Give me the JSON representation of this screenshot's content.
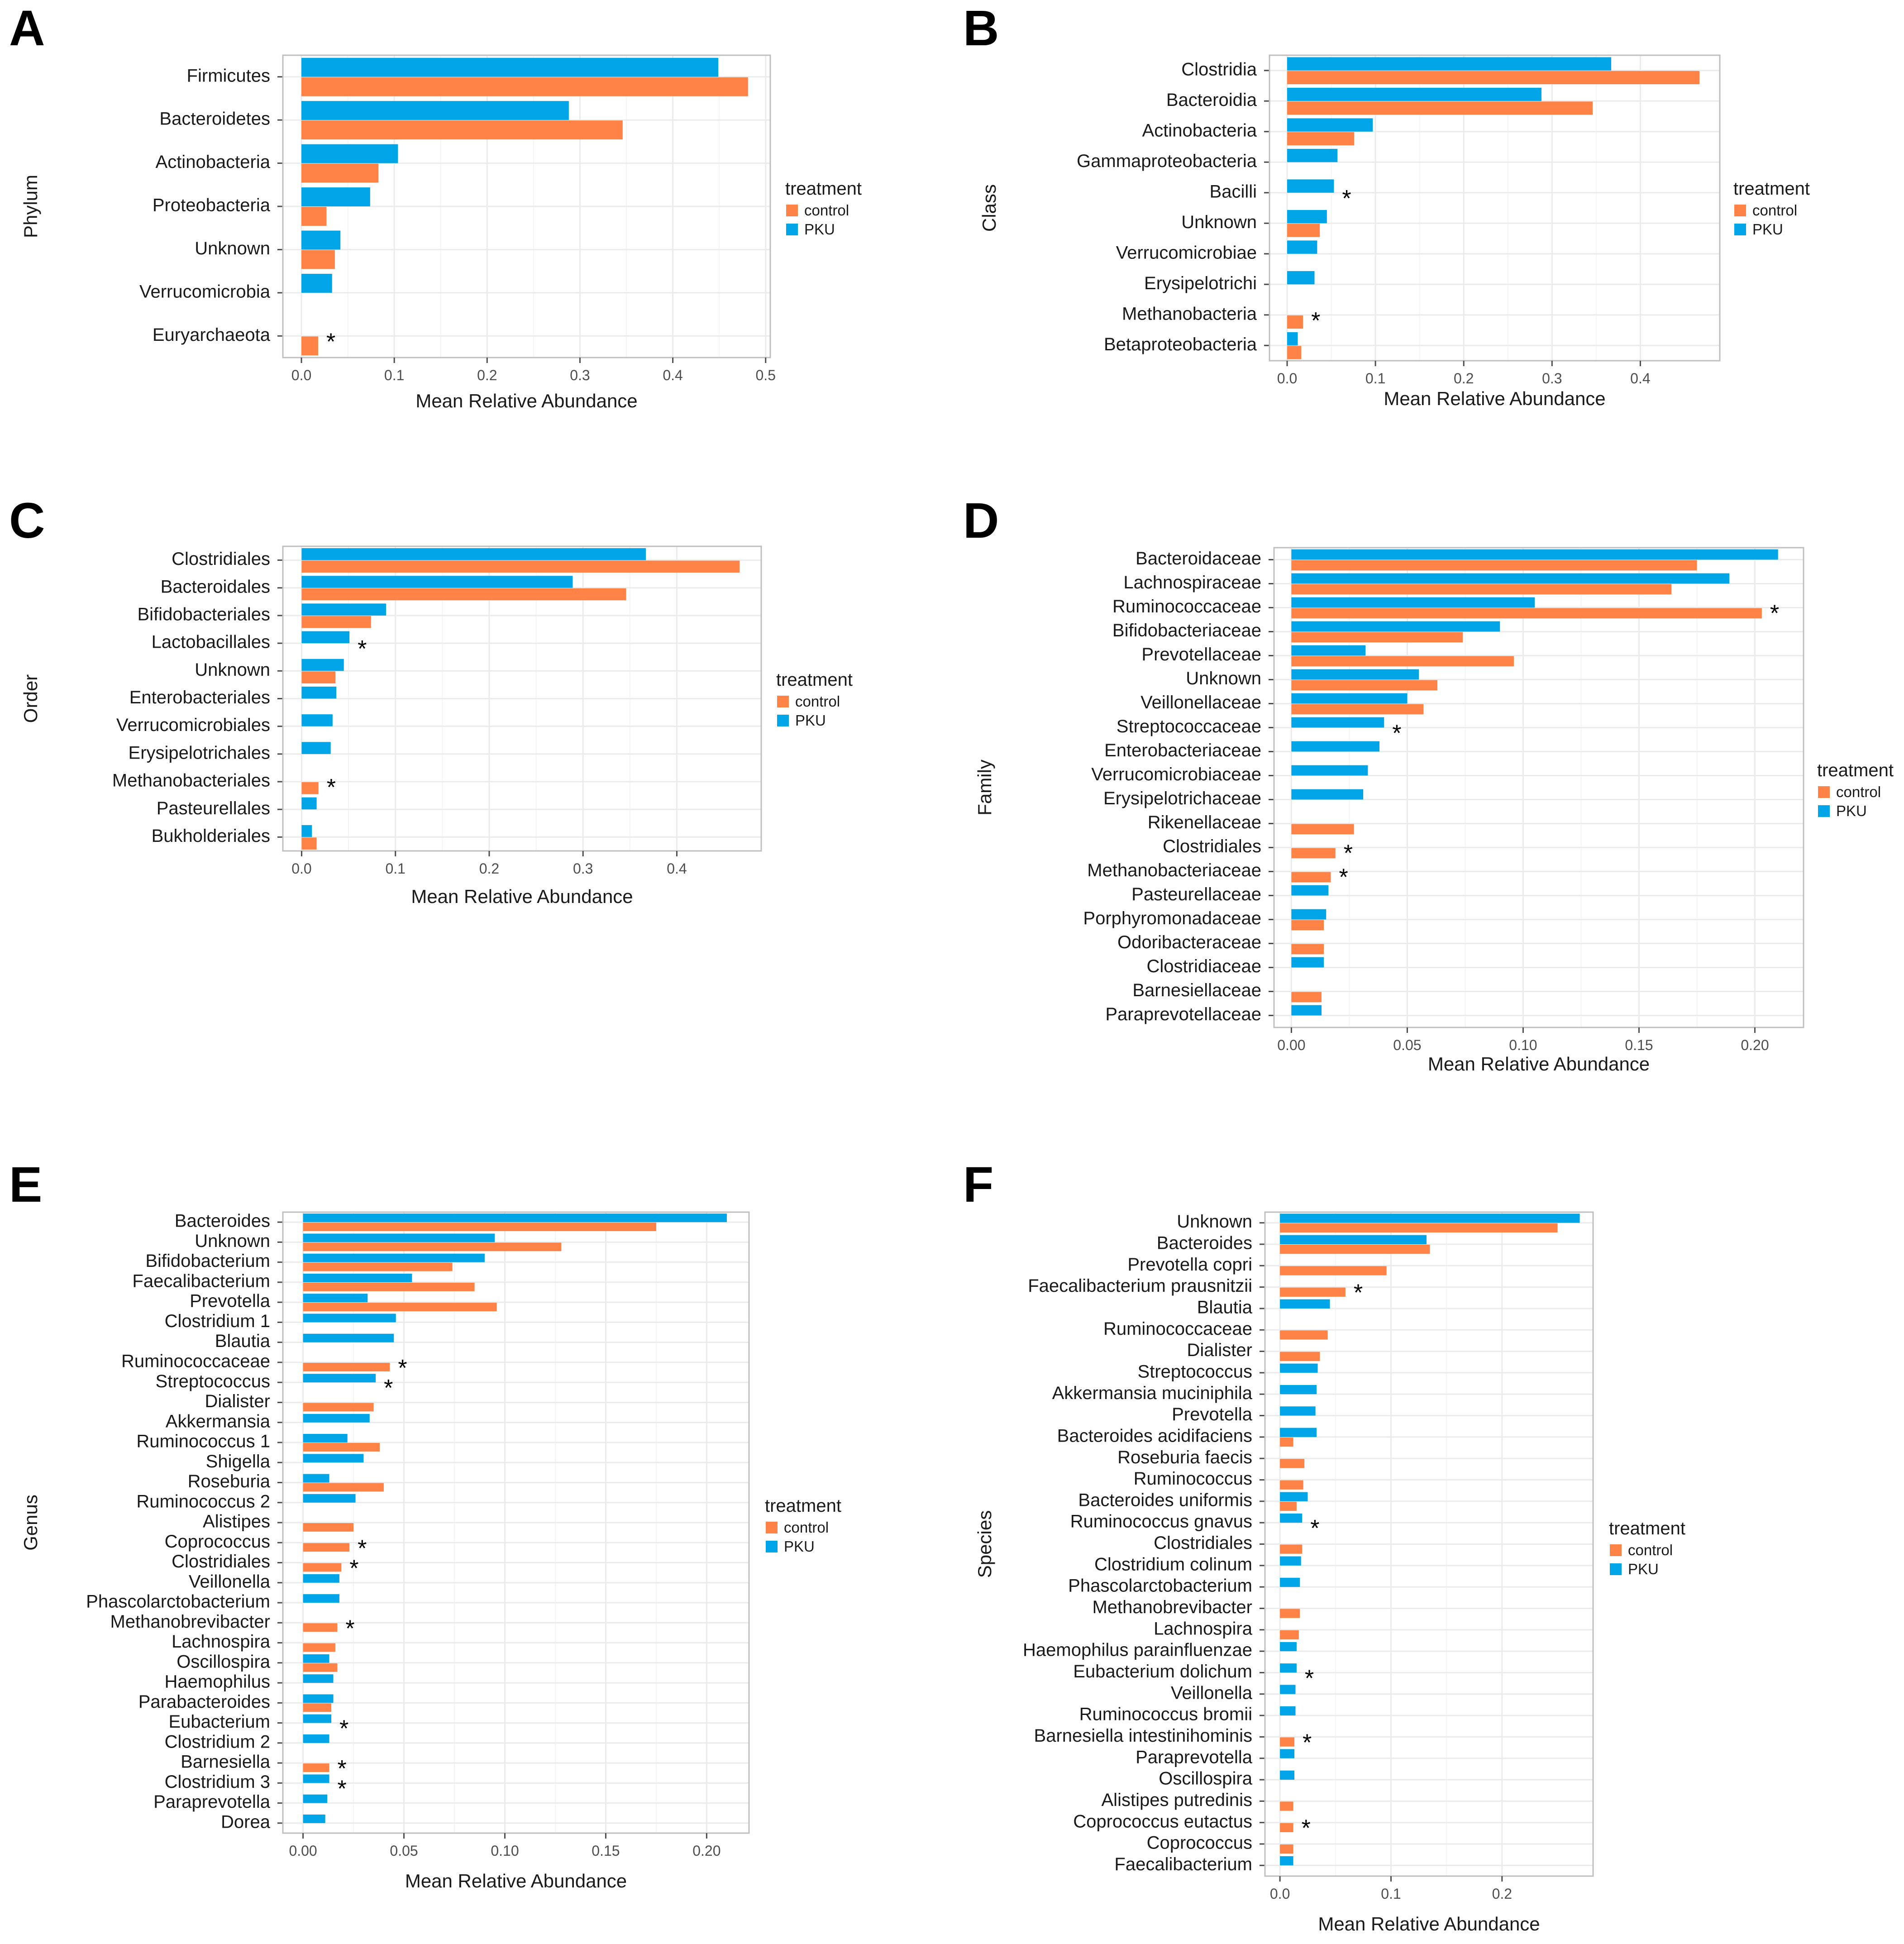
{
  "colors": {
    "control": "#FF8247",
    "PKU": "#00A5E8"
  },
  "chart_data": [
    {
      "letter": "A",
      "type": "bar",
      "orientation": "horizontal",
      "xlabel": "Mean Relative Abundance",
      "ylabel": "Phylum",
      "xlim": [
        -0.02,
        0.505
      ],
      "ticks": [
        0,
        0.1,
        0.2,
        0.3,
        0.4,
        0.5
      ],
      "tick_labels": [
        "0.0",
        "0.1",
        "0.2",
        "0.3",
        "0.4",
        "0.5"
      ],
      "grid": true,
      "legend": {
        "title": "treatment",
        "entries": [
          "control",
          "PKU"
        ],
        "placement": "right"
      },
      "categories": [
        "Firmicutes",
        "Bacteroidetes",
        "Actinobacteria",
        "Proteobacteria",
        "Unknown",
        "Verrucomicrobia",
        "Euryarchaeota"
      ],
      "series": [
        {
          "name": "PKU",
          "values": [
            0.449,
            0.288,
            0.104,
            0.074,
            0.042,
            0.033,
            null
          ]
        },
        {
          "name": "control",
          "values": [
            0.481,
            0.346,
            0.083,
            0.027,
            0.036,
            null,
            0.018
          ]
        }
      ],
      "stars": [
        6
      ]
    },
    {
      "letter": "B",
      "type": "bar",
      "orientation": "horizontal",
      "xlabel": "Mean Relative Abundance",
      "ylabel": "Class",
      "xlim": [
        -0.02,
        0.49
      ],
      "ticks": [
        0,
        0.1,
        0.2,
        0.3,
        0.4
      ],
      "tick_labels": [
        "0.0",
        "0.1",
        "0.2",
        "0.3",
        "0.4"
      ],
      "grid": true,
      "legend": {
        "title": "treatment",
        "entries": [
          "control",
          "PKU"
        ],
        "placement": "right"
      },
      "categories": [
        "Clostridia",
        "Bacteroidia",
        "Actinobacteria",
        "Gammaproteobacteria",
        "Bacilli",
        "Unknown",
        "Verrucomicrobiae",
        "Erysipelotrichi",
        "Methanobacteria",
        "Betaproteobacteria"
      ],
      "series": [
        {
          "name": "PKU",
          "values": [
            0.367,
            0.288,
            0.097,
            0.057,
            0.053,
            0.045,
            0.034,
            0.031,
            null,
            0.012
          ]
        },
        {
          "name": "control",
          "values": [
            0.467,
            0.346,
            0.076,
            null,
            null,
            0.037,
            null,
            null,
            0.018,
            0.016
          ]
        }
      ],
      "stars": [
        4,
        8
      ]
    },
    {
      "letter": "C",
      "type": "bar",
      "orientation": "horizontal",
      "xlabel": "Mean Relative Abundance",
      "ylabel": "Order",
      "xlim": [
        -0.02,
        0.49
      ],
      "ticks": [
        0,
        0.1,
        0.2,
        0.3,
        0.4
      ],
      "tick_labels": [
        "0.0",
        "0.1",
        "0.2",
        "0.3",
        "0.4"
      ],
      "grid": true,
      "legend": {
        "title": "treatment",
        "entries": [
          "control",
          "PKU"
        ],
        "placement": "right"
      },
      "categories": [
        "Clostridiales",
        "Bacteroidales",
        "Bifidobacteriales",
        "Lactobacillales",
        "Unknown",
        "Enterobacteriales",
        "Verrucomicrobiales",
        "Erysipelotrichales",
        "Methanobacteriales",
        "Pasteurellales",
        "Bukholderiales"
      ],
      "series": [
        {
          "name": "PKU",
          "values": [
            0.367,
            0.289,
            0.09,
            0.051,
            0.045,
            0.037,
            0.033,
            0.031,
            null,
            0.016,
            0.011
          ]
        },
        {
          "name": "control",
          "values": [
            0.467,
            0.346,
            0.074,
            null,
            0.036,
            null,
            null,
            null,
            0.018,
            null,
            0.016
          ]
        }
      ],
      "stars": [
        3,
        8
      ]
    },
    {
      "letter": "D",
      "type": "bar",
      "orientation": "horizontal",
      "xlabel": "Mean Relative Abundance",
      "ylabel": "Family",
      "xlim": [
        -0.0075,
        0.221
      ],
      "ticks": [
        0,
        0.05,
        0.1,
        0.15,
        0.2
      ],
      "tick_labels": [
        "0.00",
        "0.05",
        "0.10",
        "0.15",
        "0.20"
      ],
      "grid": true,
      "legend": {
        "title": "treatment",
        "entries": [
          "control",
          "PKU"
        ],
        "placement": "right"
      },
      "categories": [
        "Bacteroidaceae",
        "Lachnospiraceae",
        "Ruminococcaceae",
        "Bifidobacteriaceae",
        "Prevotellaceae",
        "Unknown",
        "Veillonellaceae",
        "Streptococcaceae",
        "Enterobacteriaceae",
        "Verrucomicrobiaceae",
        "Erysipelotrichaceae",
        "Rikenellaceae",
        "Clostridiales",
        "Methanobacteriaceae",
        "Pasteurellaceae",
        "Porphyromonadaceae",
        "Odoribacteraceae",
        "Clostridiaceae",
        "Barnesiellaceae",
        "Paraprevotellaceae"
      ],
      "series": [
        {
          "name": "PKU",
          "values": [
            0.21,
            0.189,
            0.105,
            0.09,
            0.032,
            0.055,
            0.05,
            0.04,
            0.038,
            0.033,
            0.031,
            null,
            null,
            null,
            0.016,
            0.015,
            null,
            0.014,
            null,
            0.013
          ]
        },
        {
          "name": "control",
          "values": [
            0.175,
            0.164,
            0.203,
            0.074,
            0.096,
            0.063,
            0.057,
            null,
            null,
            null,
            null,
            0.027,
            0.019,
            0.017,
            null,
            0.014,
            0.014,
            null,
            0.013,
            null
          ]
        }
      ],
      "stars": [
        2,
        7,
        12,
        13
      ]
    },
    {
      "letter": "E",
      "type": "bar",
      "orientation": "horizontal",
      "xlabel": "Mean Relative Abundance",
      "ylabel": "Genus",
      "xlim": [
        -0.01,
        0.221
      ],
      "ticks": [
        0,
        0.05,
        0.1,
        0.15,
        0.2
      ],
      "tick_labels": [
        "0.00",
        "0.05",
        "0.10",
        "0.15",
        "0.20"
      ],
      "grid": true,
      "legend": {
        "title": "treatment",
        "entries": [
          "control",
          "PKU"
        ],
        "placement": "right"
      },
      "categories": [
        "Bacteroides",
        "Unknown",
        "Bifidobacterium",
        "Faecalibacterium",
        "Prevotella",
        "Clostridium 1",
        "Blautia",
        "Ruminococcaceae",
        "Streptococcus",
        "Dialister",
        "Akkermansia",
        "Ruminococcus 1",
        "Shigella",
        "Roseburia",
        "Ruminococcus 2",
        "Alistipes",
        "Coprococcus",
        "Clostridiales",
        "Veillonella",
        "Phascolarctobacterium",
        "Methanobrevibacter",
        "Lachnospira",
        "Oscillospira",
        "Haemophilus",
        "Parabacteroides",
        "Eubacterium",
        "Clostridium 2",
        "Barnesiella",
        "Clostridium 3",
        "Paraprevotella",
        "Dorea"
      ],
      "series": [
        {
          "name": "PKU",
          "values": [
            0.21,
            0.095,
            0.09,
            0.054,
            0.032,
            0.046,
            0.045,
            null,
            0.036,
            null,
            0.033,
            0.022,
            0.03,
            0.013,
            0.026,
            null,
            null,
            null,
            0.018,
            0.018,
            null,
            null,
            0.013,
            0.015,
            0.015,
            0.014,
            0.013,
            null,
            0.013,
            0.012,
            0.011
          ]
        },
        {
          "name": "control",
          "values": [
            0.175,
            0.128,
            0.074,
            0.085,
            0.096,
            null,
            null,
            0.043,
            null,
            0.035,
            null,
            0.038,
            null,
            0.04,
            null,
            0.025,
            0.023,
            0.019,
            null,
            null,
            0.017,
            0.016,
            0.017,
            null,
            0.014,
            null,
            null,
            0.013,
            null,
            null,
            null
          ]
        }
      ],
      "stars": [
        7,
        8,
        16,
        17,
        20,
        25,
        27,
        28
      ]
    },
    {
      "letter": "F",
      "type": "bar",
      "orientation": "horizontal",
      "xlabel": "Mean Relative Abundance",
      "ylabel": "Species",
      "xlim": [
        -0.0135,
        0.282
      ],
      "ticks": [
        0,
        0.1,
        0.2
      ],
      "tick_labels": [
        "0.0",
        "0.1",
        "0.2"
      ],
      "grid": true,
      "legend": {
        "title": "treatment",
        "entries": [
          "control",
          "PKU"
        ],
        "placement": "right"
      },
      "categories": [
        "Unknown",
        "Bacteroides",
        "Prevotella copri",
        "Faecalibacterium prausnitzii",
        "Blautia",
        "Ruminococcaceae",
        "Dialister",
        "Streptococcus",
        "Akkermansia muciniphila",
        "Prevotella",
        "Bacteroides acidifaciens",
        "Roseburia faecis",
        "Ruminococcus",
        "Bacteroides uniformis",
        "Ruminococcus gnavus",
        "Clostridiales",
        "Clostridium colinum",
        "Phascolarctobacterium",
        "Methanobrevibacter",
        "Lachnospira",
        "Haemophilus parainfluenzae",
        "Eubacterium dolichum",
        "Veillonella",
        "Ruminococcus bromii",
        "Barnesiella intestinihominis",
        "Paraprevotella",
        "Oscillospira",
        "Alistipes putredinis",
        "Coprococcus eutactus",
        "Coprococcus",
        "Faecalibacterium"
      ],
      "series": [
        {
          "name": "PKU",
          "values": [
            0.27,
            0.132,
            null,
            null,
            0.045,
            null,
            null,
            0.034,
            0.033,
            0.032,
            0.033,
            null,
            null,
            0.025,
            0.02,
            null,
            0.019,
            0.018,
            null,
            null,
            0.015,
            0.015,
            0.014,
            0.014,
            null,
            0.013,
            0.013,
            null,
            null,
            null,
            0.012
          ]
        },
        {
          "name": "control",
          "values": [
            0.25,
            0.135,
            0.096,
            0.059,
            null,
            0.043,
            0.036,
            null,
            null,
            null,
            0.012,
            0.022,
            0.021,
            0.015,
            null,
            0.02,
            null,
            null,
            0.018,
            0.017,
            null,
            null,
            null,
            null,
            0.013,
            null,
            null,
            0.012,
            0.012,
            0.012,
            null
          ]
        }
      ],
      "stars": [
        3,
        14,
        21,
        24,
        28
      ]
    }
  ]
}
